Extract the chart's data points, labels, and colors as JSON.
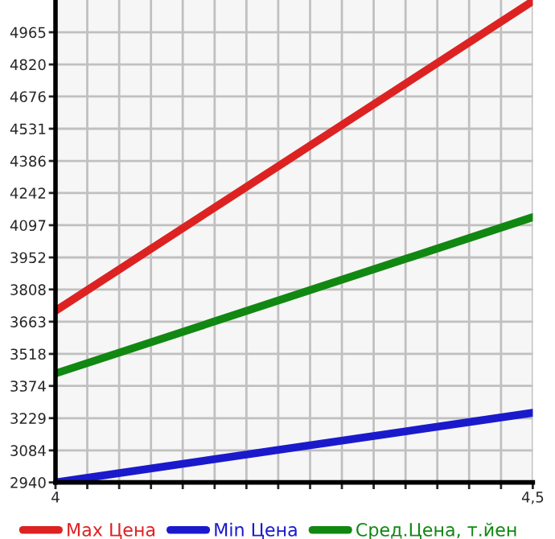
{
  "chart_data": {
    "type": "line",
    "x": [
      4,
      4.5
    ],
    "series": [
      {
        "name": "Max Цена",
        "color": "#dd2222",
        "values": [
          3712,
          5105
        ]
      },
      {
        "name": "Min Цена",
        "color": "#1a1acc",
        "values": [
          2940,
          3253
        ]
      },
      {
        "name": "Сред.Цена, т.йен",
        "color": "#118811",
        "values": [
          3430,
          4133
        ]
      }
    ],
    "xlim": [
      4,
      4.5
    ],
    "xticks": [
      {
        "value": 4,
        "label": "4"
      },
      {
        "value": 4.0333,
        "label": null
      },
      {
        "value": 4.0667,
        "label": null
      },
      {
        "value": 4.1,
        "label": null
      },
      {
        "value": 4.1333,
        "label": null
      },
      {
        "value": 4.1667,
        "label": null
      },
      {
        "value": 4.2,
        "label": null
      },
      {
        "value": 4.2333,
        "label": null
      },
      {
        "value": 4.2667,
        "label": null
      },
      {
        "value": 4.3,
        "label": null
      },
      {
        "value": 4.3333,
        "label": null
      },
      {
        "value": 4.3667,
        "label": null
      },
      {
        "value": 4.4,
        "label": null
      },
      {
        "value": 4.4333,
        "label": null
      },
      {
        "value": 4.4667,
        "label": null
      },
      {
        "value": 4.5,
        "label": "4,5"
      }
    ],
    "ylim": [
      2940,
      5110
    ],
    "yticks": [
      2940,
      3084,
      3229,
      3374,
      3518,
      3663,
      3808,
      3952,
      4097,
      4242,
      4386,
      4531,
      4676,
      4820,
      4965
    ],
    "grid": true,
    "legend": "bottom",
    "marker": "none",
    "line_style": "solid"
  }
}
